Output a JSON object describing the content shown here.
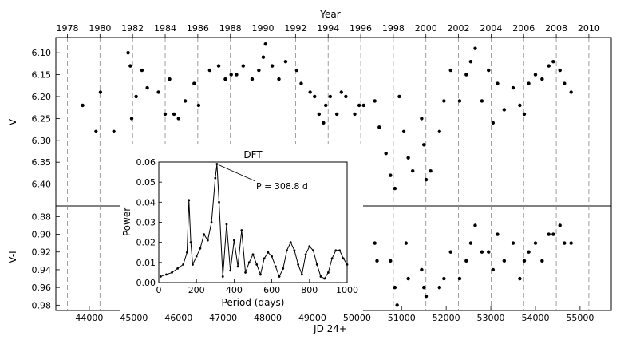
{
  "chart_data": [
    {
      "panel": "light-curve",
      "type": "scatter",
      "top_axis_label": "Year",
      "top_ticks": [
        "1978",
        "1980",
        "1982",
        "1984",
        "1986",
        "1988",
        "1990",
        "1992",
        "1994",
        "1996",
        "1998",
        "2000",
        "2002",
        "2004",
        "2006",
        "2008",
        "2010"
      ],
      "xlabel": "JD 24+",
      "xlim": [
        43250,
        55700
      ],
      "xticks": [
        "44000",
        "45000",
        "46000",
        "47000",
        "48000",
        "49000",
        "50000",
        "51000",
        "52000",
        "53000",
        "54000",
        "55000"
      ],
      "grid": "dashed vertical lines at each year",
      "upper": {
        "ylabel": "V",
        "ylim": [
          6.45,
          6.065
        ],
        "yticks": [
          "6.10",
          "6.15",
          "6.20",
          "6.25",
          "6.30",
          "6.35",
          "6.40"
        ],
        "series": [
          {
            "x": [
              43850,
              44150,
              44250,
              44550,
              44870,
              44920,
              44950,
              45050,
              45180,
              45300,
              45550,
              45700,
              45800,
              45900,
              46000,
              46150,
              46350,
              46450,
              46700,
              46900,
              47050,
              47180,
              47300,
              47450,
              47650,
              47800,
              47900,
              47950,
              48100,
              48250,
              48400,
              48650,
              48750,
              48950,
              49050,
              49150,
              49250,
              49300,
              49400,
              49550,
              49650,
              49750,
              49950,
              50050,
              50150,
              50400,
              50500,
              50650,
              50750,
              50850,
              50950,
              51050,
              51150,
              51250,
              51450,
              51500,
              51550,
              51650,
              51850,
              51950,
              52100,
              52300,
              52450,
              52550,
              52650,
              52800,
              52950,
              53050,
              53150,
              53300,
              53500,
              53650,
              53750,
              53850,
              54000,
              54150,
              54300,
              54400,
              54550,
              54650,
              54800
            ],
            "y": [
              6.22,
              6.28,
              6.19,
              6.28,
              6.1,
              6.13,
              6.25,
              6.2,
              6.14,
              6.18,
              6.19,
              6.24,
              6.16,
              6.24,
              6.25,
              6.21,
              6.17,
              6.22,
              6.14,
              6.13,
              6.16,
              6.15,
              6.15,
              6.13,
              6.16,
              6.14,
              6.11,
              6.08,
              6.13,
              6.16,
              6.12,
              6.14,
              6.17,
              6.19,
              6.2,
              6.24,
              6.26,
              6.22,
              6.2,
              6.24,
              6.19,
              6.2,
              6.24,
              6.22,
              6.22,
              6.21,
              6.27,
              6.33,
              6.38,
              6.41,
              6.2,
              6.28,
              6.34,
              6.37,
              6.25,
              6.31,
              6.39,
              6.37,
              6.28,
              6.21,
              6.14,
              6.21,
              6.15,
              6.12,
              6.09,
              6.21,
              6.14,
              6.26,
              6.17,
              6.23,
              6.18,
              6.22,
              6.24,
              6.17,
              6.15,
              6.16,
              6.13,
              6.12,
              6.14,
              6.17,
              6.19
            ]
          }
        ]
      },
      "lower": {
        "ylabel": "V-I",
        "ylim": [
          0.986,
          0.868
        ],
        "yticks": [
          "0.88",
          "0.90",
          "0.92",
          "0.94",
          "0.96",
          "0.98"
        ],
        "series": [
          {
            "x": [
              50400,
              50450,
              50750,
              50850,
              50900,
              51100,
              51150,
              51450,
              51500,
              51550,
              51850,
              51950,
              52100,
              52300,
              52450,
              52550,
              52650,
              52800,
              52950,
              53050,
              53150,
              53300,
              53500,
              53650,
              53750,
              53850,
              54000,
              54150,
              54300,
              54400,
              54550,
              54650,
              54800
            ],
            "y": [
              0.91,
              0.93,
              0.93,
              0.96,
              0.98,
              0.91,
              0.95,
              0.94,
              0.96,
              0.97,
              0.96,
              0.95,
              0.92,
              0.95,
              0.93,
              0.91,
              0.89,
              0.92,
              0.92,
              0.94,
              0.9,
              0.93,
              0.91,
              0.95,
              0.93,
              0.92,
              0.91,
              0.93,
              0.9,
              0.9,
              0.89,
              0.91,
              0.91
            ]
          }
        ]
      }
    },
    {
      "panel": "inset",
      "type": "line",
      "title": "DFT",
      "xlabel": "Period (days)",
      "ylabel": "Power",
      "xlim": [
        0,
        1000
      ],
      "ylim": [
        0,
        0.06
      ],
      "xticks": [
        "0",
        "200",
        "400",
        "600",
        "800",
        "1000"
      ],
      "yticks": [
        "0.00",
        "0.01",
        "0.02",
        "0.03",
        "0.04",
        "0.05",
        "0.06"
      ],
      "annotation": "P = 308.8 d",
      "annotation_point": [
        308.8,
        0.059
      ],
      "series": [
        {
          "x": [
            10,
            40,
            70,
            100,
            130,
            150,
            160,
            170,
            180,
            200,
            220,
            240,
            260,
            280,
            300,
            308.8,
            320,
            340,
            360,
            380,
            400,
            420,
            440,
            460,
            480,
            500,
            520,
            540,
            560,
            580,
            600,
            620,
            640,
            660,
            680,
            700,
            720,
            740,
            760,
            780,
            800,
            820,
            840,
            860,
            880,
            900,
            920,
            940,
            960,
            980,
            1000
          ],
          "y": [
            0.003,
            0.004,
            0.005,
            0.007,
            0.009,
            0.015,
            0.041,
            0.02,
            0.009,
            0.013,
            0.017,
            0.024,
            0.021,
            0.03,
            0.052,
            0.059,
            0.04,
            0.003,
            0.029,
            0.006,
            0.021,
            0.008,
            0.026,
            0.005,
            0.01,
            0.014,
            0.009,
            0.004,
            0.012,
            0.015,
            0.013,
            0.008,
            0.003,
            0.007,
            0.016,
            0.02,
            0.016,
            0.009,
            0.004,
            0.014,
            0.018,
            0.016,
            0.009,
            0.003,
            0.002,
            0.005,
            0.012,
            0.016,
            0.016,
            0.012,
            0.009
          ]
        }
      ]
    }
  ]
}
